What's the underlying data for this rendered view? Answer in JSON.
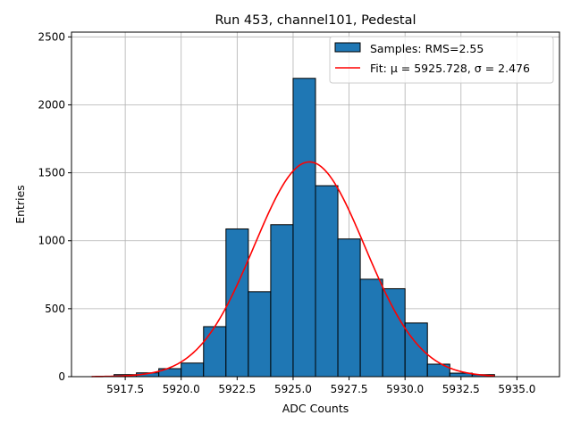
{
  "chart_data": {
    "type": "bar",
    "title": "Run 453, channel101, Pedestal",
    "xlabel": "ADC Counts",
    "ylabel": "Entries",
    "xlim": [
      5915.1,
      5936.9
    ],
    "ylim": [
      0,
      2535
    ],
    "grid": true,
    "legend_placement": "top-right",
    "xticks": [
      5917.5,
      5920.0,
      5922.5,
      5925.0,
      5927.5,
      5930.0,
      5932.5,
      5935.0
    ],
    "xtick_labels": [
      "5917.5",
      "5920.0",
      "5922.5",
      "5925.0",
      "5927.5",
      "5930.0",
      "5932.5",
      "5935.0"
    ],
    "yticks": [
      0,
      500,
      1000,
      1500,
      2000,
      2500
    ],
    "ytick_labels": [
      "0",
      "500",
      "1000",
      "1500",
      "2000",
      "2500"
    ],
    "histogram": {
      "name": "Samples: RMS=2.55",
      "color": "#1f77b4",
      "bin_edges": [
        5917,
        5918,
        5919,
        5920,
        5921,
        5922,
        5923,
        5924,
        5925,
        5926,
        5927,
        5928,
        5929,
        5930,
        5931,
        5932,
        5933,
        5934
      ],
      "values": [
        15,
        28,
        59,
        100,
        368,
        1087,
        625,
        1118,
        2195,
        1405,
        1013,
        717,
        647,
        395,
        92,
        26,
        15
      ]
    },
    "fit": {
      "name": "Fit: μ = 5925.728, σ = 2.476",
      "color": "#ff0000",
      "mu": 5925.728,
      "sigma": 2.476,
      "amplitude": 1580,
      "x_range": [
        5916,
        5934
      ]
    }
  }
}
